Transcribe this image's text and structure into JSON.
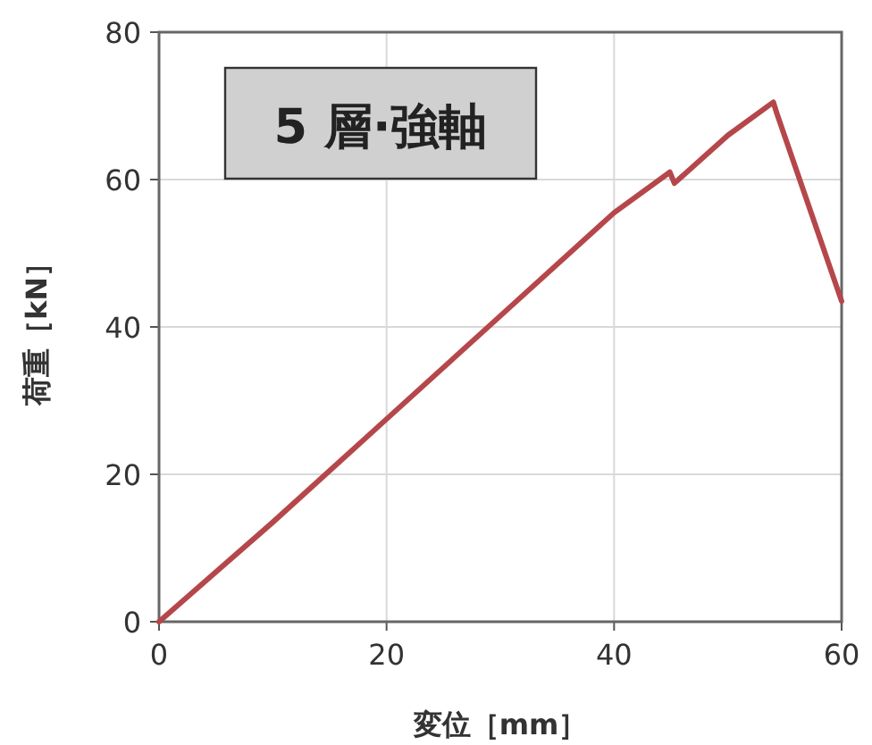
{
  "chart_data": {
    "type": "line",
    "xlabel": "変位［mm］",
    "ylabel": "荷重［kN］",
    "annotations": [
      "5 層·強軸"
    ],
    "series": [
      {
        "color": "#b5474b",
        "x": [
          0,
          10,
          20,
          30,
          40,
          44.9,
          45.3,
          50,
          54,
          54.3,
          60
        ],
        "values": [
          0,
          13.5,
          27.5,
          41.5,
          55.5,
          61,
          59.5,
          66,
          70.5,
          69,
          43.5
        ]
      }
    ],
    "xlim": [
      0,
      60
    ],
    "ylim": [
      0,
      80
    ],
    "xticks": [
      0,
      20,
      40,
      60
    ],
    "yticks": [
      0,
      20,
      40,
      60,
      80
    ],
    "grid": true,
    "marker": "none",
    "line_style": "solid"
  }
}
